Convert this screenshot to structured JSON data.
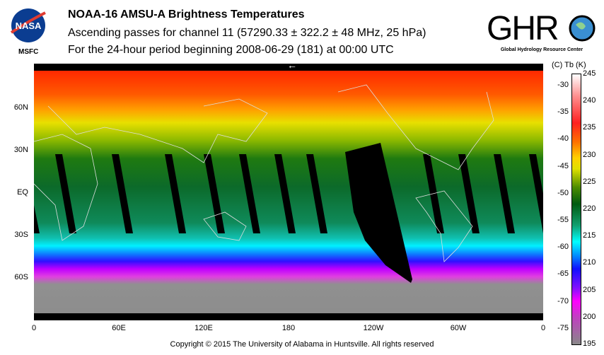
{
  "header": {
    "title": "NOAA-16 AMSU-A Brightness Temperatures",
    "subtitle": "Ascending passes for channel 11 (57290.33 ± 322.2 ± 48 MHz, 25 hPa)",
    "period": "For the 24-hour period beginning 2008-06-29 (181) at 00:00 UTC"
  },
  "logos": {
    "nasa": "NASA",
    "nasa_sub": "MSFC",
    "ghrc": "GHRC",
    "ghrc_sub": "Global Hydrology Resource Center"
  },
  "map": {
    "lat_labels": [
      "60N",
      "30N",
      "EQ",
      "30S",
      "60S"
    ],
    "lon_labels": [
      "0",
      "60E",
      "120E",
      "180",
      "120W",
      "60W",
      "0"
    ],
    "arrow": "←"
  },
  "colorbar": {
    "header": "(C)  Tb  (K)",
    "celsius": [
      "-30",
      "-35",
      "-40",
      "-45",
      "-50",
      "-55",
      "-60",
      "-65",
      "-70",
      "-75"
    ],
    "kelvin": [
      "245",
      "240",
      "235",
      "230",
      "225",
      "220",
      "215",
      "210",
      "205",
      "200",
      "195"
    ]
  },
  "footer": {
    "copyright": "Copyright © 2015 The University of Alabama in Huntsville.  All rights reserved"
  }
}
